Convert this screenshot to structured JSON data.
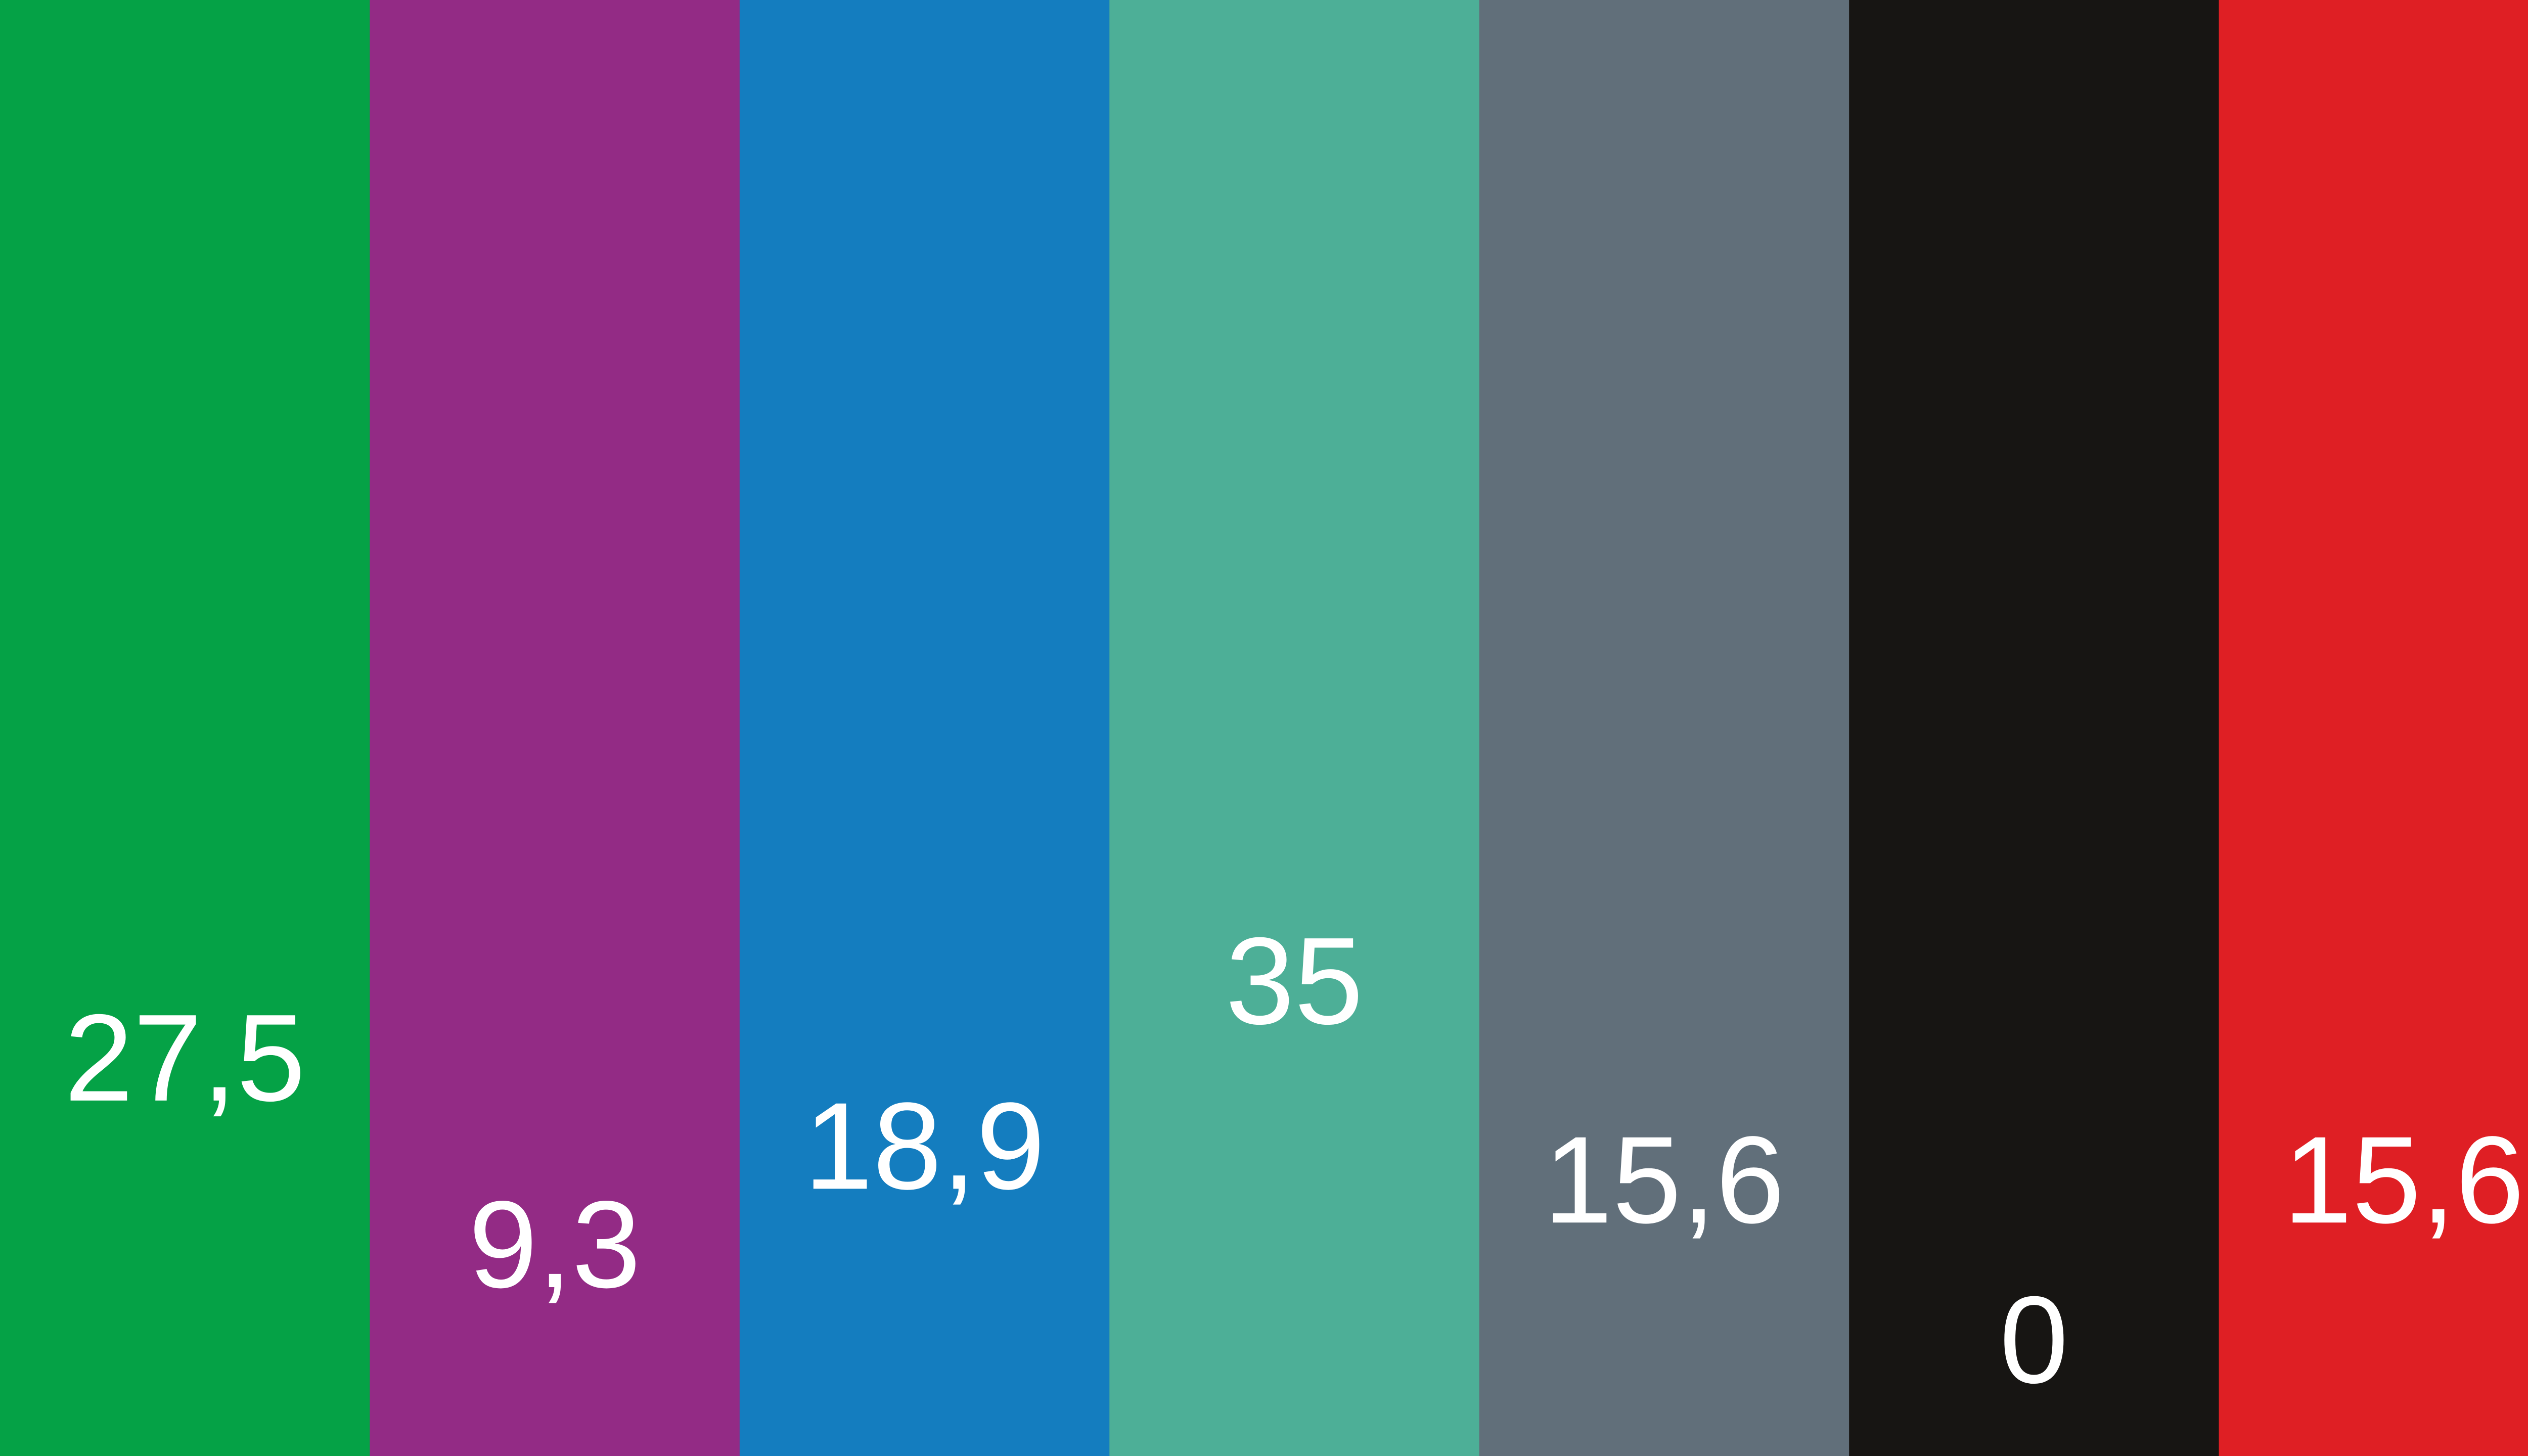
{
  "chart_data": {
    "type": "bar",
    "categories": [
      "",
      "",
      "",
      "",
      "",
      "",
      ""
    ],
    "values": [
      27.5,
      9.3,
      18.9,
      35,
      15.6,
      0,
      15.6
    ],
    "data_labels": [
      "27,5",
      "9,3",
      "18,9",
      "35",
      "15,6",
      "0",
      "15,6"
    ],
    "colors": [
      "#05a246",
      "#932b85",
      "#147dbf",
      "#4daf97",
      "#616f7a",
      "#171513",
      "#df1f24"
    ],
    "ylim": [
      0,
      35
    ],
    "title": "",
    "xlabel": "",
    "ylabel": "",
    "grid": false,
    "legend": "none"
  }
}
